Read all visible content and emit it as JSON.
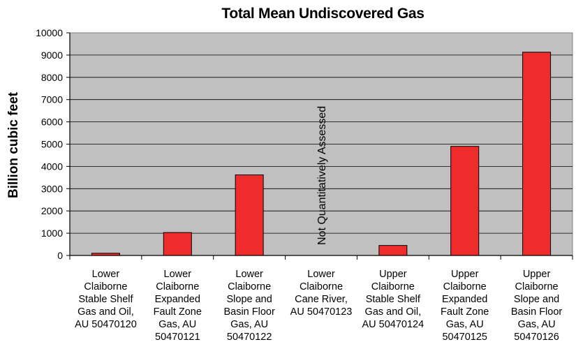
{
  "chart_data": {
    "type": "bar",
    "title": "Total Mean Undiscovered Gas",
    "ylabel": "Billion cubic feet",
    "xlabel": "",
    "ylim": [
      0,
      10000
    ],
    "yticks": [
      0,
      1000,
      2000,
      3000,
      4000,
      5000,
      6000,
      7000,
      8000,
      9000,
      10000
    ],
    "grid": true,
    "plot_background": "#c0c0c0",
    "bar_color": "#ee2c2c",
    "categories": [
      [
        "Lower",
        "Claiborne",
        "Stable Shelf",
        "Gas and Oil,",
        "AU 50470120"
      ],
      [
        "Lower",
        "Claiborne",
        "Expanded",
        "Fault Zone",
        "Gas, AU",
        "50470121"
      ],
      [
        "Lower",
        "Claiborne",
        "Slope and",
        "Basin Floor",
        "Gas, AU",
        "50470122"
      ],
      [
        "Lower",
        "Claiborne",
        "Cane River,",
        "AU 50470123"
      ],
      [
        "Upper",
        "Claiborne",
        "Stable Shelf",
        "Gas and Oil,",
        "AU 50470124"
      ],
      [
        "Upper",
        "Claiborne",
        "Expanded",
        "Fault Zone",
        "Gas, AU",
        "50470125"
      ],
      [
        "Upper",
        "Claiborne",
        "Slope and",
        "Basin Floor",
        "Gas, AU",
        "50470126"
      ]
    ],
    "values": [
      100,
      1030,
      3620,
      null,
      450,
      4900,
      9130
    ],
    "annotations": [
      {
        "category_index": 3,
        "text": "Not Quantitatively Assessed"
      }
    ]
  }
}
